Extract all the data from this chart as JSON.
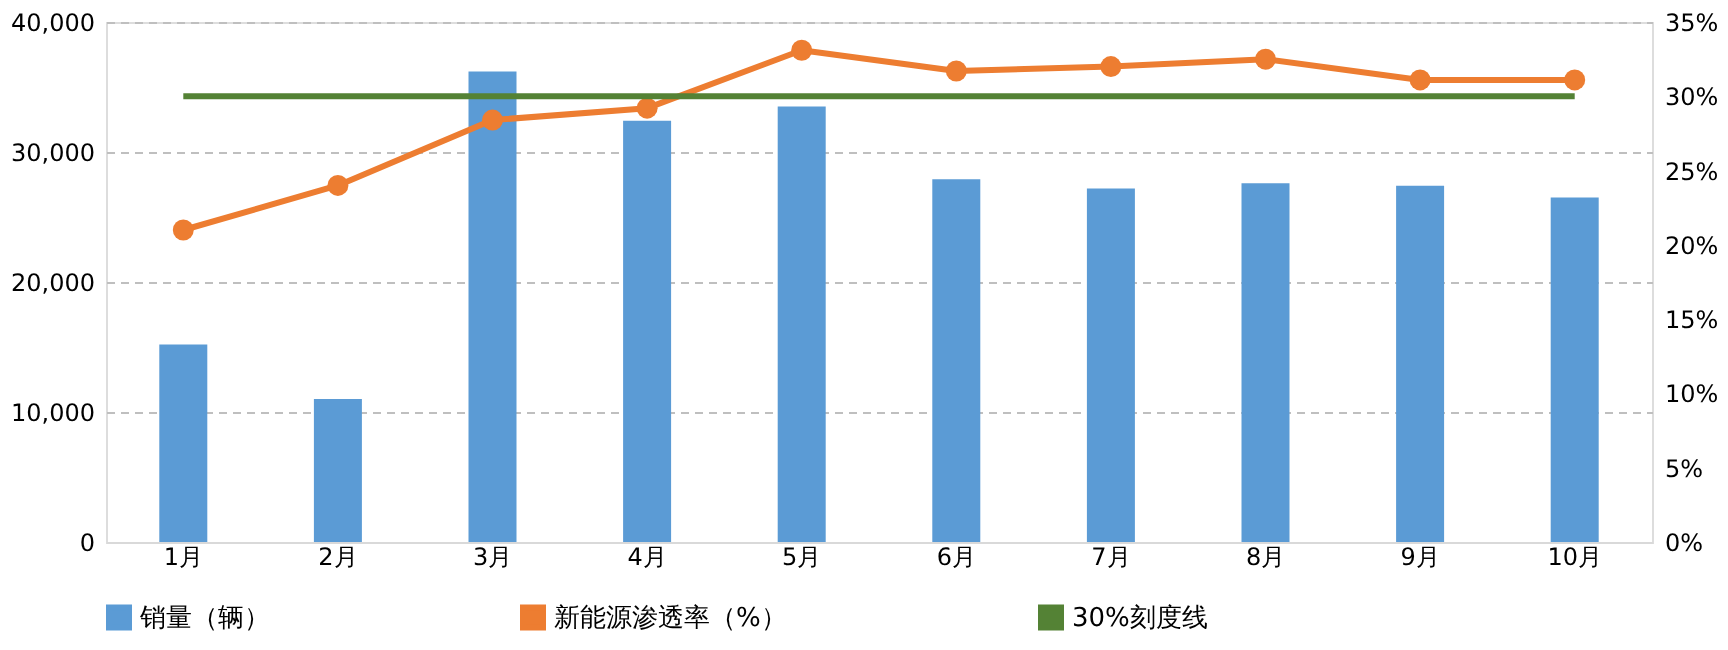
{
  "chart_data": {
    "type": "bar",
    "categories": [
      "1月",
      "2月",
      "3月",
      "4月",
      "5月",
      "6月",
      "7月",
      "8月",
      "9月",
      "10月"
    ],
    "series": [
      {
        "name": "销量（辆）",
        "color": "#5b9bd5",
        "values": [
          15200,
          11000,
          36200,
          32400,
          33500,
          27900,
          27200,
          27600,
          27400,
          26500
        ]
      },
      {
        "name": "新能源渗透率（%）",
        "type": "line",
        "axis": "y2",
        "color": "#ed7d31",
        "marker": "circle",
        "line_style": "solid",
        "values": [
          21.0,
          24.0,
          28.4,
          29.2,
          33.1,
          31.7,
          32.0,
          32.5,
          31.1,
          31.1
        ]
      },
      {
        "name": "30%刻度线",
        "type": "line",
        "axis": "y2",
        "color": "#548235",
        "marker": "none",
        "line_style": "solid",
        "values": [
          30,
          30,
          30,
          30,
          30,
          30,
          30,
          30,
          30,
          30
        ]
      }
    ],
    "ylim": [
      0,
      40000
    ],
    "yticks": [
      0,
      {
        "value": 10000,
        "label": "10,000"
      },
      {
        "value": 20000,
        "label": "20,000"
      },
      {
        "value": 30000,
        "label": "30,000"
      },
      {
        "value": 40000,
        "label": "40,000"
      }
    ],
    "y2lim": [
      0,
      35
    ],
    "y2ticks": [
      {
        "value": 0,
        "label": "0%"
      },
      {
        "value": 5,
        "label": "5%"
      },
      {
        "value": 10,
        "label": "10%"
      },
      {
        "value": 15,
        "label": "15%"
      },
      {
        "value": 20,
        "label": "20%"
      },
      {
        "value": 25,
        "label": "25%"
      },
      {
        "value": 30,
        "label": "30%"
      },
      {
        "value": 35,
        "label": "35%"
      }
    ],
    "grid": "y",
    "legend": "bottom"
  }
}
